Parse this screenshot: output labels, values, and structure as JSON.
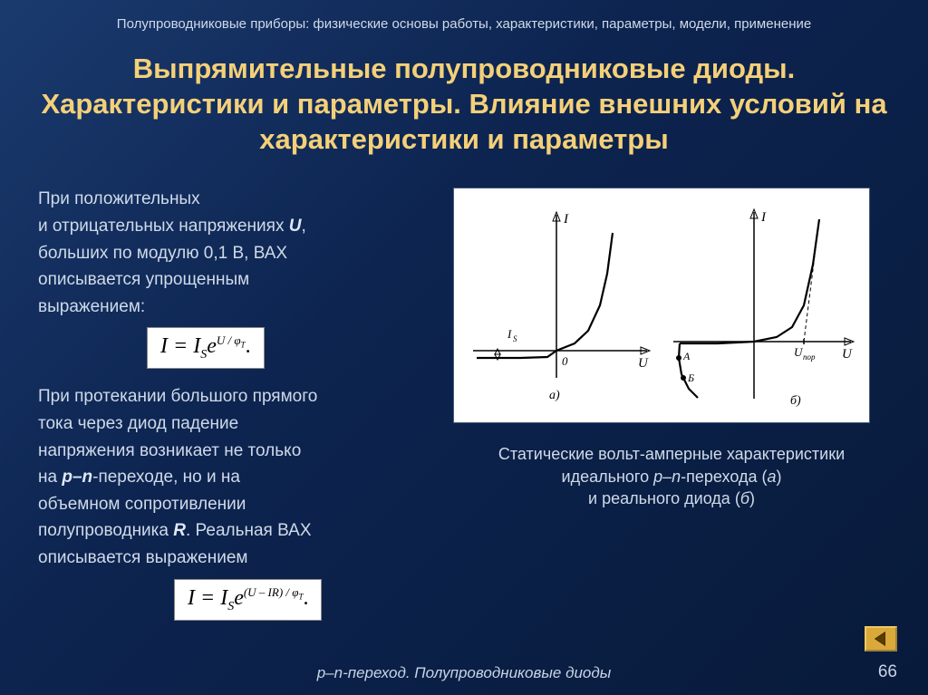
{
  "header": {
    "strip": "Полупроводниковые приборы: физические основы работы, характеристики, параметры, модели,   применение"
  },
  "title": "Выпрямительные полупроводниковые диоды. Характеристики и параметры. Влияние внешних условий на характеристики и параметры",
  "left": {
    "p1a": "При положительных",
    "p1b": "и отрицательных напряжениях ",
    "p1b_em": "U",
    "p1b_tail": ",",
    "p1c": "больших по модулю 0,1 В, ВАХ",
    "p1d": "описывается упрощенным",
    "p1e": "выражением:",
    "p2a": "При протекании большого прямого",
    "p2b": "тока через диод падение",
    "p2c": "напряжения возникает не только",
    "p2d_pre": "на ",
    "p2d_em": "p–n",
    "p2d_tail": "-переходе, но и на",
    "p2e": "объемном сопротивлении",
    "p2f_pre": "полупроводника ",
    "p2f_em": "R",
    "p2f_tail": ". Реальная ВАХ",
    "p2g": "описывается выражением"
  },
  "formula1": {
    "lhs": "I = I",
    "sub1": "S",
    "mid": "e",
    "sup": "U / φ",
    "supsub": "T",
    "tail": "."
  },
  "formula2": {
    "lhs": "I = I",
    "sub1": "S",
    "mid": "e",
    "sup": "(U – IR) / φ",
    "supsub": "T",
    "tail": "."
  },
  "chart": {
    "caption_l1": "Статические вольт-амперные характеристики",
    "caption_l2_pre": "идеального ",
    "caption_l2_em": "p–n",
    "caption_l2_mid": "-перехода (",
    "caption_l2_a": "а",
    "caption_l2_tail": ")",
    "caption_l3_pre": "и реального диода (",
    "caption_l3_b": "б",
    "caption_l3_tail": ")",
    "panel": {
      "background": "#ffffff",
      "axis_color": "#000000",
      "curve_color": "#000000",
      "stroke_width": 2.2,
      "plot_a": {
        "I_label": "I",
        "U_label": "U",
        "origin_label": "0",
        "Is_label": "I",
        "Is_sub": "S",
        "sub_label": "а)",
        "x_range": [
          -90,
          90
        ],
        "y_range": [
          -30,
          140
        ],
        "curve": [
          [
            -88,
            -8
          ],
          [
            -40,
            -8
          ],
          [
            -10,
            -7
          ],
          [
            0,
            0
          ],
          [
            20,
            8
          ],
          [
            35,
            22
          ],
          [
            48,
            50
          ],
          [
            56,
            85
          ],
          [
            62,
            130
          ]
        ]
      },
      "plot_b": {
        "I_label": "I",
        "U_label": "U",
        "Upor_label": "U",
        "Upor_sub": "пор",
        "A_label": "А",
        "B_label": "Б",
        "sub_label": "б)",
        "x_range": [
          -90,
          90
        ],
        "y_range": [
          -60,
          140
        ],
        "curve": [
          [
            -82,
            -2
          ],
          [
            -40,
            -2
          ],
          [
            0,
            0
          ],
          [
            25,
            5
          ],
          [
            42,
            16
          ],
          [
            55,
            40
          ],
          [
            65,
            85
          ],
          [
            72,
            135
          ]
        ],
        "knee_dash": [
          [
            55,
            0
          ],
          [
            72,
            135
          ]
        ],
        "breakdown": [
          [
            -82,
            -2
          ],
          [
            -83,
            -18
          ],
          [
            -80,
            -36
          ],
          [
            -72,
            -52
          ],
          [
            -62,
            -62
          ]
        ]
      }
    }
  },
  "footer": {
    "text": "p–n-переход. Полупроводниковые диоды",
    "page": "66"
  },
  "colors": {
    "title": "#f4d078",
    "text": "#d0dae8",
    "formula_bg": "#ffffff",
    "nav_bg": "#d9a93a"
  }
}
